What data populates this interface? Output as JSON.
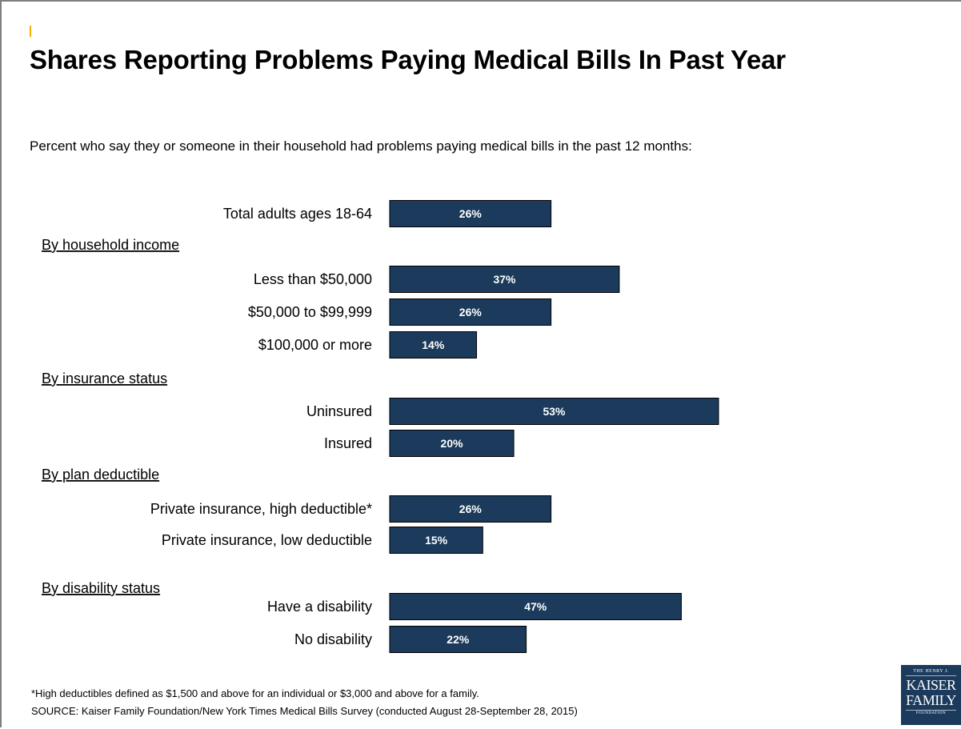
{
  "title": "Shares Reporting Problems Paying Medical Bills In Past Year",
  "subtitle": "Percent who say they or someone in their household had problems paying medical bills in the past 12 months:",
  "footnote": "*High deductibles defined as $1,500 and above for an individual or $3,000 and above for a family.",
  "source": "SOURCE: Kaiser Family Foundation/New York Times Medical Bills Survey (conducted August 28-September 28, 2015)",
  "logo": {
    "top": "THE HENRY J.",
    "line1": "KAISER",
    "line2": "FAMILY",
    "bottom": "FOUNDATION"
  },
  "colors": {
    "bar": "#1b3a5c",
    "bar_text": "#ffffff",
    "accent": "#f0b000"
  },
  "chart_data": {
    "type": "bar",
    "orientation": "horizontal",
    "unit": "%",
    "xlim": [
      0,
      53
    ],
    "grid": false,
    "rows": [
      {
        "kind": "bar",
        "label": "Total adults ages 18-64",
        "value": 26,
        "display": "26%"
      },
      {
        "kind": "group",
        "label": "By household income"
      },
      {
        "kind": "bar",
        "label": "Less than $50,000",
        "value": 37,
        "display": "37%"
      },
      {
        "kind": "bar",
        "label": "$50,000 to $99,999",
        "value": 26,
        "display": "26%"
      },
      {
        "kind": "bar",
        "label": "$100,000 or more",
        "value": 14,
        "display": "14%"
      },
      {
        "kind": "group",
        "label": "By insurance status"
      },
      {
        "kind": "bar",
        "label": "Uninsured",
        "value": 53,
        "display": "53%"
      },
      {
        "kind": "bar",
        "label": "Insured",
        "value": 20,
        "display": "20%"
      },
      {
        "kind": "group",
        "label": "By plan deductible"
      },
      {
        "kind": "bar",
        "label": "Private insurance, high deductible*",
        "value": 26,
        "display": "26%"
      },
      {
        "kind": "bar",
        "label": "Private insurance, low deductible",
        "value": 15,
        "display": "15%"
      },
      {
        "kind": "group",
        "label": "By disability status"
      },
      {
        "kind": "bar",
        "label": "Have a disability",
        "value": 47,
        "display": "47%"
      },
      {
        "kind": "bar",
        "label": "No disability",
        "value": 22,
        "display": "22%"
      }
    ]
  }
}
